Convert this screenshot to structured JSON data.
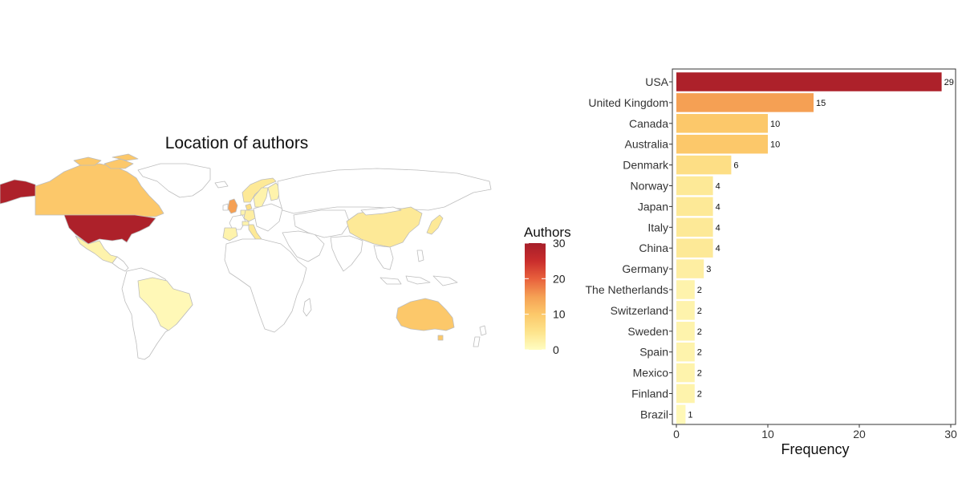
{
  "chart_data": [
    {
      "type": "choropleth",
      "title": "Location of authors",
      "legend": {
        "title": "Authors",
        "ticks": [
          "30",
          "20",
          "10",
          "0"
        ],
        "range": [
          0,
          30
        ],
        "colors": [
          "#fffdc2",
          "#fde48c",
          "#fcc86a",
          "#f5a054",
          "#e8603c",
          "#c92d2c",
          "#a61e2a"
        ]
      },
      "regions": [
        {
          "name": "USA",
          "value": 29
        },
        {
          "name": "United Kingdom",
          "value": 15
        },
        {
          "name": "Canada",
          "value": 10
        },
        {
          "name": "Australia",
          "value": 10
        },
        {
          "name": "Denmark",
          "value": 6
        },
        {
          "name": "Norway",
          "value": 4
        },
        {
          "name": "Japan",
          "value": 4
        },
        {
          "name": "Italy",
          "value": 4
        },
        {
          "name": "China",
          "value": 4
        },
        {
          "name": "Germany",
          "value": 3
        },
        {
          "name": "The Netherlands",
          "value": 2
        },
        {
          "name": "Switzerland",
          "value": 2
        },
        {
          "name": "Sweden",
          "value": 2
        },
        {
          "name": "Spain",
          "value": 2
        },
        {
          "name": "Mexico",
          "value": 2
        },
        {
          "name": "Finland",
          "value": 2
        },
        {
          "name": "Brazil",
          "value": 1
        }
      ]
    },
    {
      "type": "bar",
      "orientation": "horizontal",
      "categories": [
        "USA",
        "United Kingdom",
        "Canada",
        "Australia",
        "Denmark",
        "Norway",
        "Japan",
        "Italy",
        "China",
        "Germany",
        "The Netherlands",
        "Switzerland",
        "Sweden",
        "Spain",
        "Mexico",
        "Finland",
        "Brazil"
      ],
      "values": [
        29,
        15,
        10,
        10,
        6,
        4,
        4,
        4,
        4,
        3,
        2,
        2,
        2,
        2,
        2,
        2,
        1
      ],
      "xlabel": "Frequency",
      "ylabel": "",
      "xlim": [
        0,
        30
      ],
      "xticks": [
        0,
        10,
        20,
        30
      ],
      "data_labels": true,
      "grid": false
    }
  ]
}
